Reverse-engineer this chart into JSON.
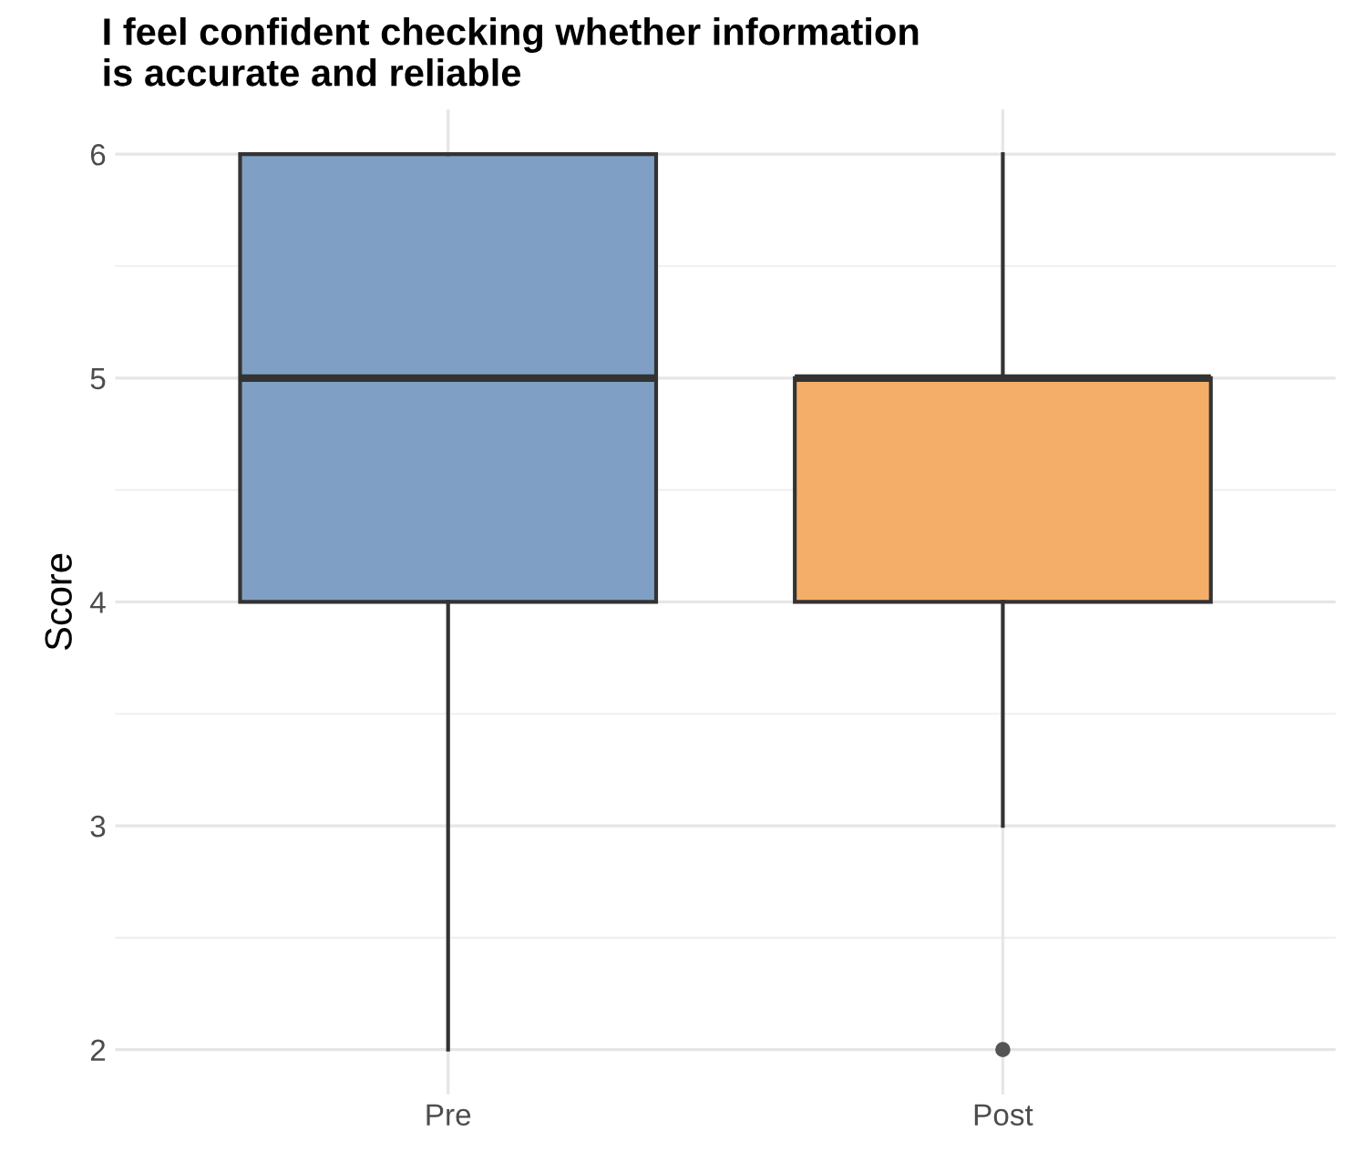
{
  "chart_data": {
    "type": "box",
    "title": "I feel confident checking whether information\nis accurate and reliable",
    "ylabel": "Score",
    "categories": [
      "Pre",
      "Post"
    ],
    "colors": [
      "#7fa0c4",
      "#f4ae6a"
    ],
    "boxes": [
      {
        "low": 2,
        "q1": 4,
        "median": 5,
        "q3": 6,
        "high": 6
      },
      {
        "low": 3,
        "q1": 4,
        "median": 5,
        "q3": 5,
        "high": 6,
        "outliers": [
          2
        ]
      }
    ],
    "ylim": [
      1.8,
      6.2
    ],
    "yticks": [
      2,
      3,
      4,
      5,
      6
    ],
    "grid": true
  }
}
